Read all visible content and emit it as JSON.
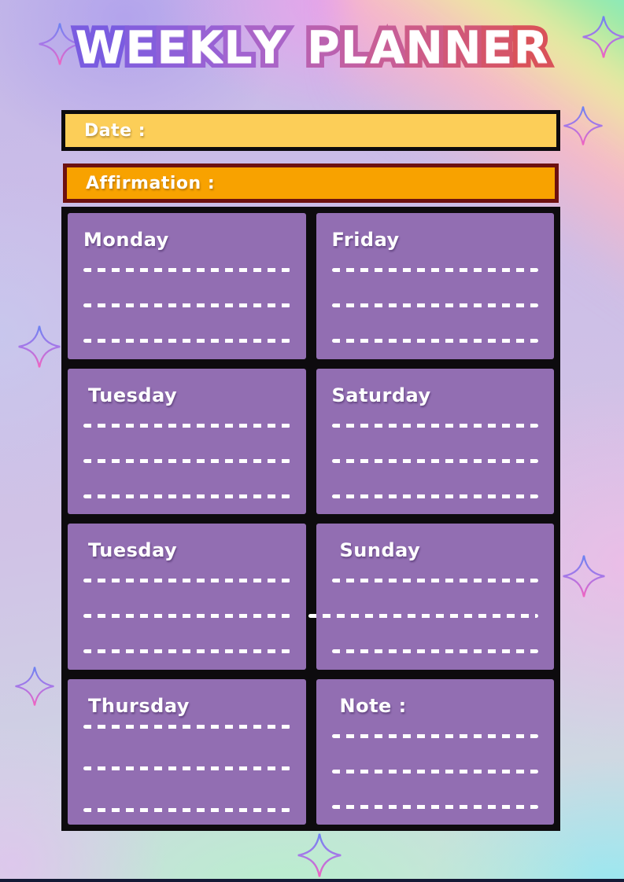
{
  "header": {
    "title": "WEEKLY PLANNER"
  },
  "date_bar": {
    "label": "Date :",
    "value": ""
  },
  "affirmation_bar": {
    "label": "Affirmation :",
    "value": ""
  },
  "cards": [
    {
      "label": "Monday"
    },
    {
      "label": "Friday"
    },
    {
      "label": "Tuesday"
    },
    {
      "label": "Saturday"
    },
    {
      "label": "Tuesday"
    },
    {
      "label": "Sunday"
    },
    {
      "label": "Thursday"
    },
    {
      "label": "Note :"
    }
  ],
  "decorations": {
    "sparkle_icon": "four-point-sparkle",
    "sparkle_count": 7
  },
  "colors": {
    "card_purple": "#926eb2",
    "date_yellow": "#fcce58",
    "date_border": "#0d0b0e",
    "affirmation_orange": "#f8a200",
    "affirmation_border": "#6d1110",
    "frame_black": "#0d0b0e",
    "title_gradient_start": "#7a5ce0",
    "title_gradient_end": "#d9525a",
    "sparkle_top": "#6c83f2",
    "sparkle_bottom": "#f263c0",
    "bottom_strip": "#141a36"
  }
}
